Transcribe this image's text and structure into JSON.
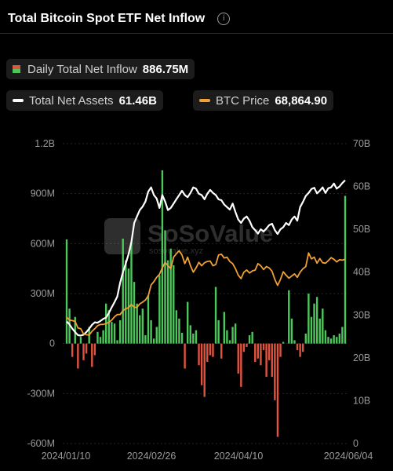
{
  "header": {
    "title": "Total Bitcoin Spot ETF Net Inflow",
    "info_icon": "info-icon"
  },
  "watermark": {
    "brand": "SoSoValue",
    "url": "sosovalue.xyz"
  },
  "legend": {
    "daily": {
      "label": "Daily Total Net Inflow",
      "value": "886.75M"
    },
    "assets": {
      "label": "Total Net Assets",
      "value": "61.46B",
      "color": "#ffffff"
    },
    "price": {
      "label": "BTC Price",
      "value": "68,864.90",
      "color": "#f0a035"
    }
  },
  "colors": {
    "positive": "#4cc85a",
    "negative": "#e0533f",
    "assets": "#ffffff",
    "price": "#f0a035"
  },
  "chart_data": {
    "type": "bar",
    "left_axis": {
      "ticks": [
        "1.2B",
        "900M",
        "600M",
        "300M",
        "0",
        "-300M",
        "-600M"
      ],
      "ylim": [
        -600,
        1200
      ],
      "unit": "M"
    },
    "right_axis": {
      "ticks": [
        "70B",
        "60B",
        "50B",
        "40B",
        "30B",
        "20B",
        "10B",
        "0"
      ],
      "ylim": [
        0,
        70
      ],
      "unit": "B"
    },
    "x_ticks": [
      "2024/01/10",
      "2024/02/26",
      "2024/04/10",
      "2024/06/04"
    ],
    "series": [
      {
        "name": "Daily Total Net Inflow",
        "values": [
          625,
          210,
          -80,
          160,
          -150,
          40,
          -100,
          -60,
          100,
          -140,
          -70,
          70,
          40,
          80,
          240,
          200,
          130,
          120,
          20,
          140,
          630,
          500,
          450,
          610,
          370,
          240,
          170,
          210,
          50,
          290,
          140,
          30,
          100,
          410,
          1040,
          680,
          500,
          570,
          470,
          200,
          150,
          65,
          -150,
          250,
          110,
          60,
          80,
          -130,
          -250,
          -320,
          -110,
          -70,
          -80,
          340,
          140,
          -90,
          190,
          80,
          20,
          100,
          120,
          -180,
          -260,
          -50,
          -20,
          50,
          70,
          -110,
          -90,
          -130,
          -40,
          -200,
          -100,
          -200,
          -340,
          -560,
          -80,
          10,
          0,
          320,
          150,
          20,
          -40,
          -80,
          -50,
          60,
          300,
          160,
          240,
          280,
          150,
          210,
          80,
          40,
          30,
          50,
          40,
          60,
          100,
          886.75
        ]
      },
      {
        "name": "Total Net Assets",
        "axis": "right",
        "values": [
          28.5,
          27.8,
          26.8,
          26.0,
          25.3,
          25.2,
          25.4,
          26.0,
          26.8,
          27.7,
          28.3,
          28.2,
          28.6,
          29.1,
          29.4,
          30.5,
          31.8,
          33.0,
          34.3,
          37.5,
          40.0,
          42.0,
          44.2,
          47.0,
          51.5,
          53.0,
          54.5,
          55.3,
          56.5,
          58.8,
          59.8,
          58.0,
          57.2,
          55.0,
          58.0,
          56.5,
          54.5,
          55.0,
          56.0,
          57.0,
          58.0,
          59.0,
          58.0,
          57.5,
          58.5,
          59.8,
          59.5,
          58.3,
          58.0,
          57.0,
          58.3,
          59.2,
          58.5,
          58.0,
          57.0,
          56.8,
          55.8,
          55.2,
          54.6,
          56.0,
          54.0,
          52.3,
          51.5,
          52.5,
          53.0,
          52.0,
          50.5,
          49.8,
          49.0,
          50.0,
          49.5,
          50.2,
          51.0,
          51.3,
          49.8,
          48.9,
          50.0,
          50.5,
          51.5,
          51.0,
          52.3,
          53.0,
          52.0,
          55.2,
          56.4,
          57.8,
          58.5,
          59.4,
          59.7,
          58.4,
          59.0,
          59.8,
          58.5,
          59.6,
          59.8,
          60.7,
          59.5,
          60.0,
          60.8,
          61.46
        ]
      },
      {
        "name": "BTC Price",
        "axis": "right",
        "values": [
          29.5,
          28.8,
          28.7,
          28.5,
          27.0,
          26.8,
          25.6,
          25.4,
          25.3,
          26.2,
          26.8,
          27.5,
          27.8,
          27.8,
          28.0,
          28.3,
          28.8,
          29.6,
          30.1,
          30.1,
          31.0,
          31.5,
          31.7,
          32.5,
          31.8,
          31.8,
          32.6,
          33.0,
          33.5,
          34.5,
          37.0,
          37.8,
          38.8,
          39.5,
          41.0,
          42.3,
          41.5,
          40.8,
          43.5,
          44.3,
          45.0,
          44.0,
          42.0,
          43.5,
          41.5,
          40.0,
          41.0,
          42.3,
          41.5,
          42.2,
          42.5,
          42.6,
          41.5,
          41.8,
          44.0,
          44.2,
          43.3,
          43.5,
          42.5,
          42.0,
          40.8,
          39.3,
          38.5,
          40.0,
          40.5,
          39.8,
          40.3,
          40.5,
          42.0,
          41.5,
          40.6,
          41.3,
          41.0,
          40.2,
          38.3,
          36.9,
          38.3,
          40.1,
          39.3,
          38.6,
          39.1,
          39.6,
          38.8,
          40.0,
          40.8,
          41.3,
          44.5,
          43.1,
          43.5,
          42.1,
          43.2,
          42.2,
          42.1,
          42.7,
          43.4,
          43.0,
          42.4,
          42.9,
          42.8,
          43.0
        ]
      }
    ]
  }
}
